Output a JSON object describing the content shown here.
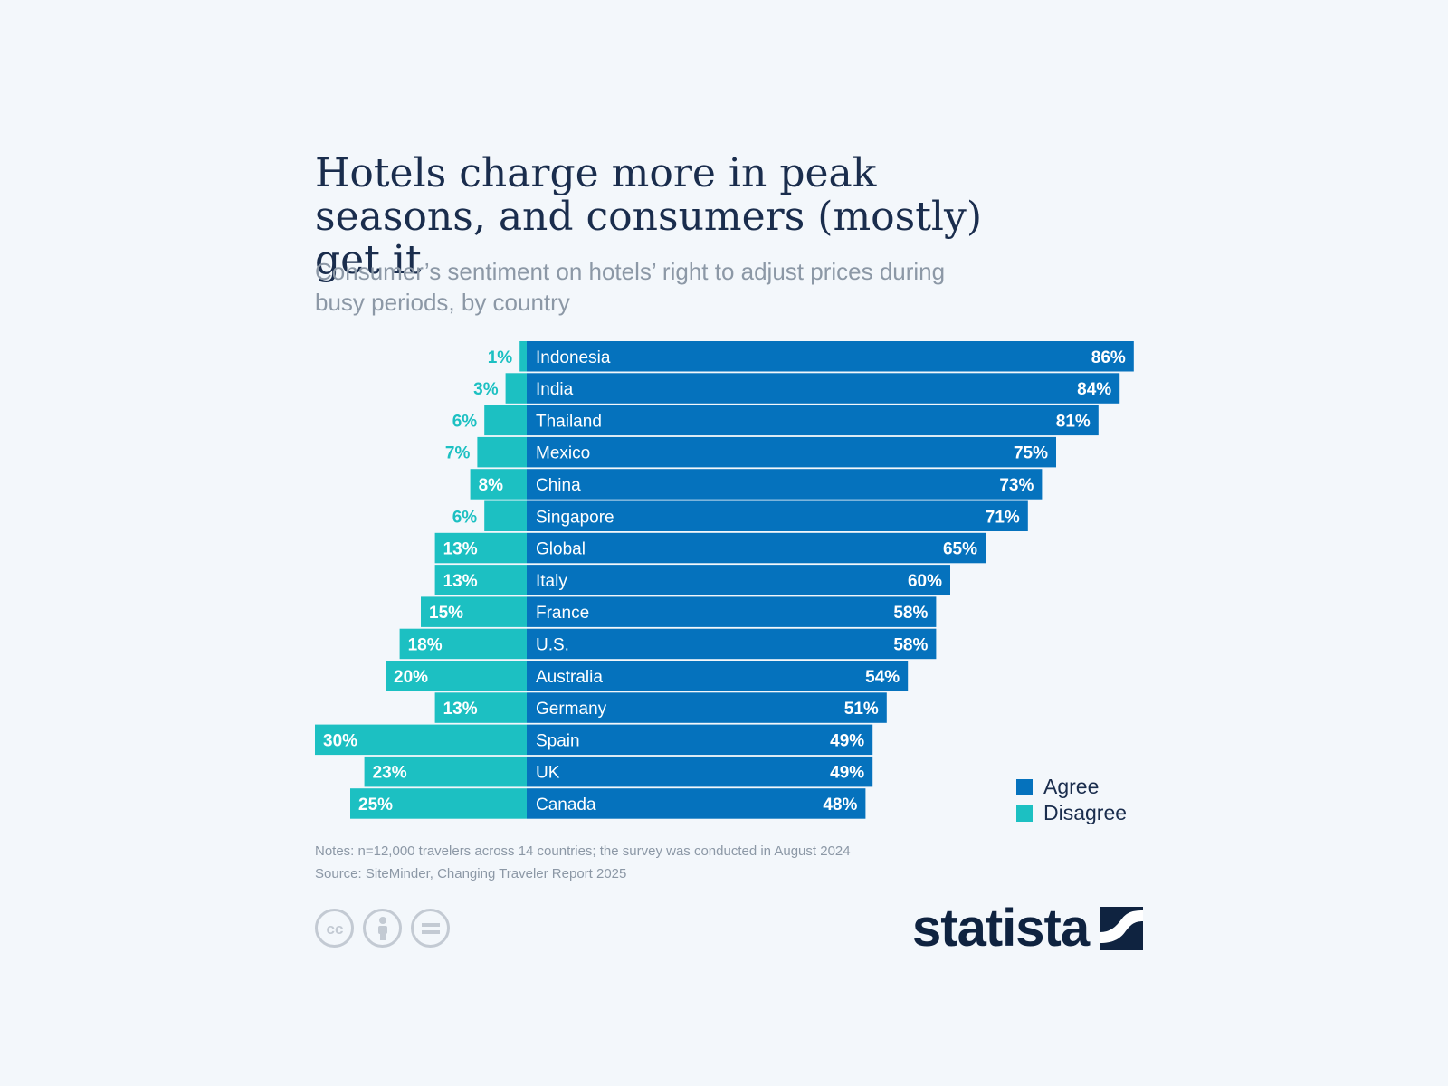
{
  "title": "Hotels charge more in peak seasons, and consumers (mostly) get it",
  "subtitle": "Consumer’s sentiment on hotels’ right to adjust prices during busy periods, by country",
  "colors": {
    "agree": "#0572bd",
    "disagree": "#1cc0c2",
    "text_dark": "#1a2d4d"
  },
  "chart_data": {
    "type": "bar",
    "orientation": "horizontal-diverging",
    "categories": [
      "Indonesia",
      "India",
      "Thailand",
      "Mexico",
      "China",
      "Singapore",
      "Global",
      "Italy",
      "France",
      "U.S.",
      "Australia",
      "Germany",
      "Spain",
      "UK",
      "Canada"
    ],
    "series": [
      {
        "name": "Agree",
        "values": [
          86,
          84,
          81,
          75,
          73,
          71,
          65,
          60,
          58,
          58,
          54,
          51,
          49,
          49,
          48
        ]
      },
      {
        "name": "Disagree",
        "values": [
          1,
          3,
          6,
          7,
          8,
          6,
          13,
          13,
          15,
          18,
          20,
          13,
          30,
          23,
          25
        ]
      }
    ],
    "unit": "%",
    "legend_position": "bottom-right"
  },
  "legend": {
    "agree": "Agree",
    "disagree": "Disagree"
  },
  "notes": "Notes: n=12,000 travelers across 14 countries; the survey was conducted in August 2024",
  "source": "Source: SiteMinder, Changing Traveler Report 2025",
  "license_icons": [
    "cc-icon",
    "attribution-icon",
    "no-derivatives-icon"
  ],
  "logo": {
    "text": "statista"
  }
}
